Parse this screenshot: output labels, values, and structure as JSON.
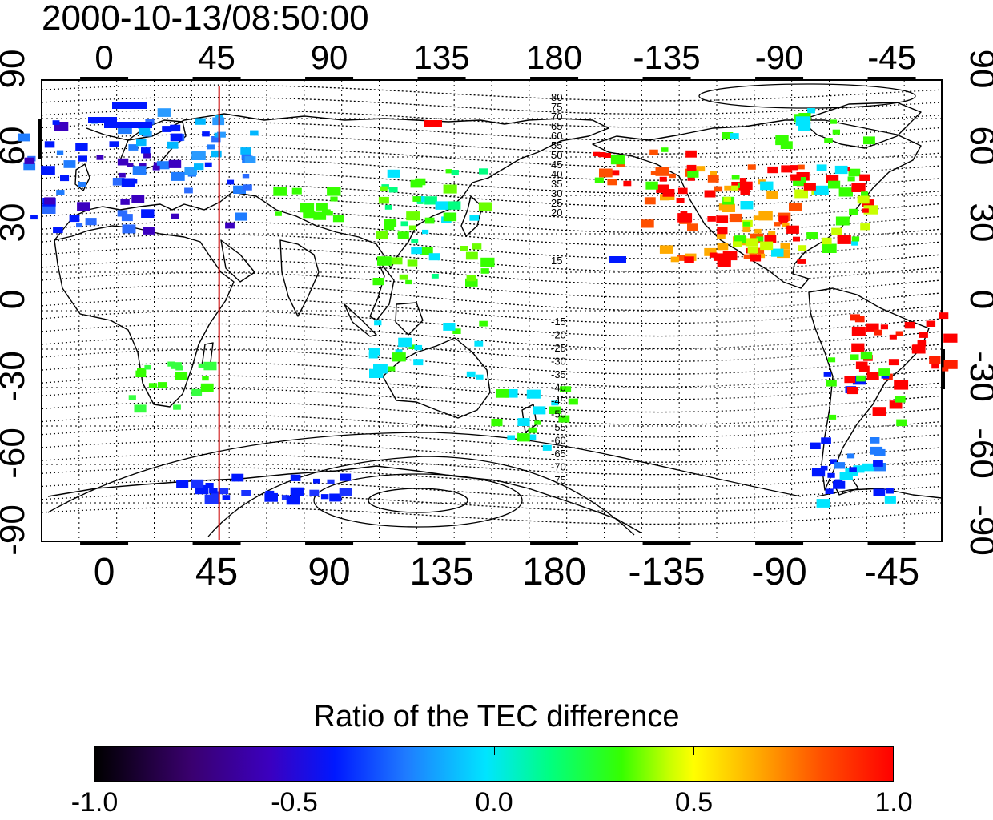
{
  "timestamp": "2000-10-13/08:50:00",
  "map": {
    "lon_ticks": [
      "0",
      "45",
      "90",
      "135",
      "180",
      "-135",
      "-90",
      "-45"
    ],
    "lat_ticks": [
      "90",
      "60",
      "30",
      "0",
      "-30",
      "-60",
      "-90"
    ],
    "contour_labels_north": [
      "80",
      "75",
      "70",
      "65",
      "60",
      "55",
      "50",
      "45",
      "40",
      "35",
      "30",
      "25",
      "20",
      "15"
    ],
    "contour_labels_south": [
      "-15",
      "-20",
      "-25",
      "-30",
      "-35",
      "-40",
      "-45",
      "-50",
      "-55",
      "-60",
      "-65",
      "-70",
      "-75"
    ],
    "marker_longitude": 46,
    "marker_color": "#cc0000"
  },
  "colorbar": {
    "title": "Ratio of the TEC difference",
    "min": -1.0,
    "max": 1.0,
    "tick_labels": [
      "-1.0",
      "-0.5",
      "0.0",
      "0.5",
      "1.0"
    ],
    "palette": [
      "#000000",
      "#3b00c0",
      "#0018ff",
      "#00e5ff",
      "#36ff00",
      "#ffff00",
      "#ff5000",
      "#ff0000"
    ]
  }
}
